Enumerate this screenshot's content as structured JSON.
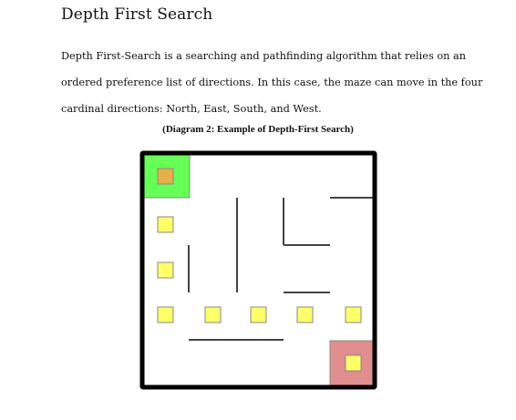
{
  "heading": "Depth First Search",
  "paragraph_lines": [
    "Depth First-Search is a searching and pathfinding algorithm that relies on an",
    "ordered preference list of directions. In this case, the maze can move in the four",
    "cardinal directions: North, East, South, and West."
  ],
  "caption": "(Diagram 2: Example of Depth-First Search)",
  "maze": {
    "grid_size": 5,
    "colors": {
      "border": "#000000",
      "start_fill": "#66ff55",
      "start_marker": "#e8ae4a",
      "goal_fill": "#e08e8e",
      "path_marker": "#ffff66",
      "marker_stroke": "#888888",
      "wall": "#444444"
    },
    "start_cell": [
      0,
      0
    ],
    "goal_cell": [
      4,
      4
    ],
    "path_cells": [
      [
        0,
        1
      ],
      [
        0,
        2
      ],
      [
        0,
        3
      ],
      [
        1,
        3
      ],
      [
        2,
        3
      ],
      [
        3,
        3
      ],
      [
        4,
        3
      ],
      [
        4,
        4
      ]
    ]
  }
}
